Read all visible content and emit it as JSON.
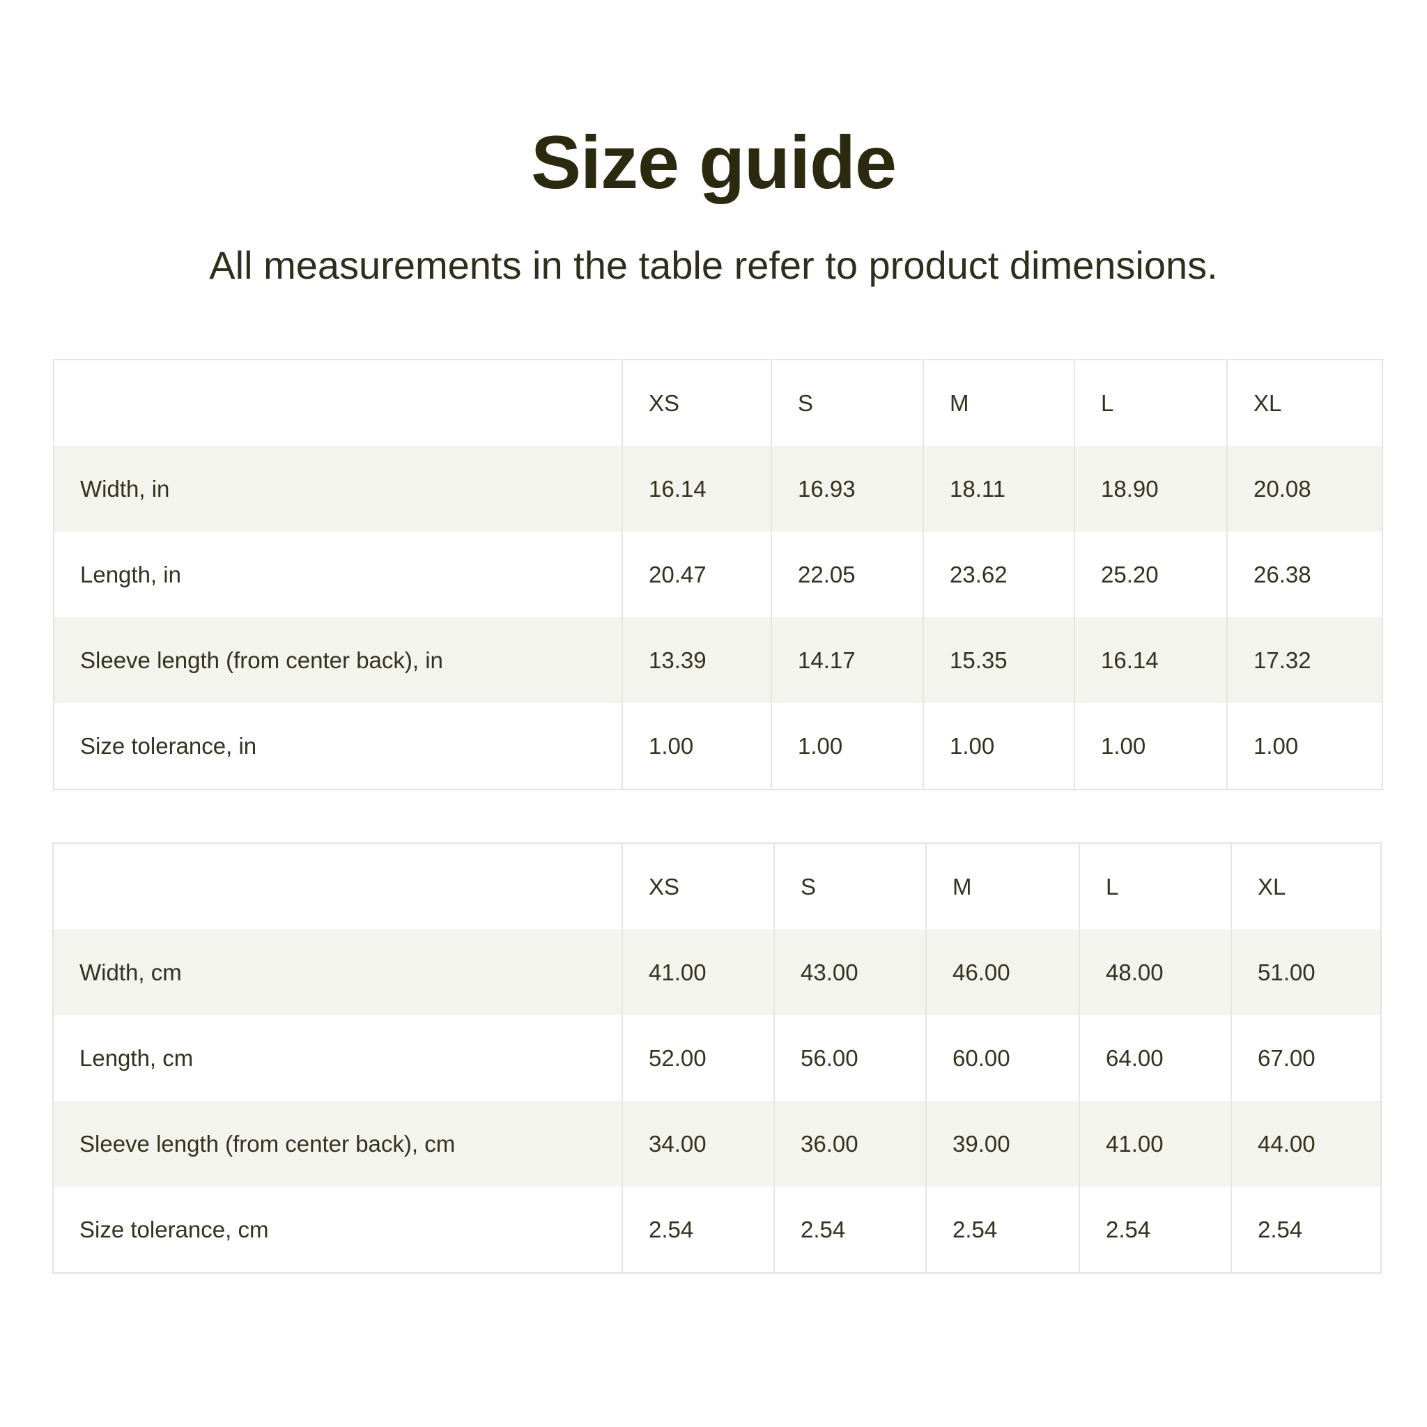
{
  "title": "Size guide",
  "subtitle": "All measurements in the table refer to product dimensions.",
  "colors": {
    "title": "#2b2a10",
    "text": "#33321f",
    "stripe": "#f3f4ee",
    "border": "#e3e3e0"
  },
  "tables": [
    {
      "headers": [
        "",
        "XS",
        "S",
        "M",
        "L",
        "XL"
      ],
      "rows": [
        [
          "Width, in",
          "16.14",
          "16.93",
          "18.11",
          "18.90",
          "20.08"
        ],
        [
          "Length, in",
          "20.47",
          "22.05",
          "23.62",
          "25.20",
          "26.38"
        ],
        [
          "Sleeve length (from center back), in",
          "13.39",
          "14.17",
          "15.35",
          "16.14",
          "17.32"
        ],
        [
          "Size tolerance, in",
          "1.00",
          "1.00",
          "1.00",
          "1.00",
          "1.00"
        ]
      ]
    },
    {
      "headers": [
        "",
        "XS",
        "S",
        "M",
        "L",
        "XL"
      ],
      "rows": [
        [
          "Width, cm",
          "41.00",
          "43.00",
          "46.00",
          "48.00",
          "51.00"
        ],
        [
          "Length, cm",
          "52.00",
          "56.00",
          "60.00",
          "64.00",
          "67.00"
        ],
        [
          "Sleeve length (from center back), cm",
          "34.00",
          "36.00",
          "39.00",
          "41.00",
          "44.00"
        ],
        [
          "Size tolerance, cm",
          "2.54",
          "2.54",
          "2.54",
          "2.54",
          "2.54"
        ]
      ]
    }
  ]
}
